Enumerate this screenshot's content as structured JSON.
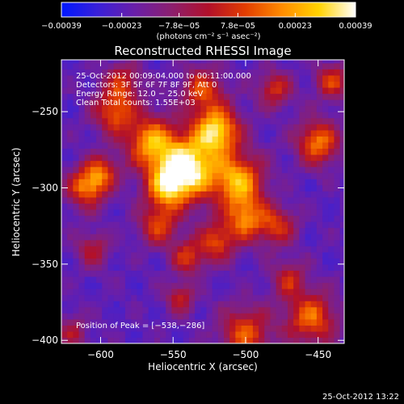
{
  "chart_data": {
    "type": "heatmap",
    "title": "Reconstructed RHESSI Image",
    "xlabel": "Heliocentric X (arcsec)",
    "ylabel": "Heliocentric Y (arcsec)",
    "xlim": [
      -627,
      -432
    ],
    "ylim": [
      -402,
      -216
    ],
    "x_ticks": [
      -600,
      -550,
      -500,
      -450
    ],
    "y_ticks": [
      -250,
      -300,
      -350,
      -400
    ],
    "x_tick_labels": [
      "−600",
      "−550",
      "−500",
      "−450"
    ],
    "y_tick_labels": [
      "−250",
      "−300",
      "−350",
      "−400"
    ],
    "colorbar": {
      "range": [
        -0.00039,
        0.00039
      ],
      "tick_values": [
        -0.00039,
        -0.00023,
        -7.8e-05,
        7.8e-05,
        0.00023,
        0.00039
      ],
      "tick_labels": [
        "−0.00039",
        "−0.00023",
        "−7.8e−05",
        "7.8e−05",
        "0.00023",
        "0.00039"
      ],
      "units_label": "(photons cm⁻² s⁻¹ asec⁻²)",
      "colormap": [
        "#0018ff",
        "#3a20d8",
        "#6a1fa8",
        "#8c1f6e",
        "#b2102a",
        "#e23d00",
        "#ff8c00",
        "#ffd200",
        "#ffffff"
      ]
    },
    "annotations": [
      "25-Oct-2012 00:09:04.000 to 00:11:00.000",
      "Detectors: 3F 5F 6F 7F 8F 9F, Att 0",
      "Energy Range: 12.0 − 25.0 keV",
      "Clean     Total counts: 1.55E+03"
    ],
    "peak_label": "Position of Peak = [−538,−286]",
    "peak": [
      -538,
      -286
    ],
    "image_sources": [
      {
        "x": -540,
        "y": -287,
        "amp": 1.0,
        "w": 14
      },
      {
        "x": -520,
        "y": -262,
        "amp": 0.85,
        "w": 11
      },
      {
        "x": -565,
        "y": -270,
        "amp": 0.7,
        "w": 12
      },
      {
        "x": -555,
        "y": -300,
        "amp": 0.6,
        "w": 10
      },
      {
        "x": -505,
        "y": -295,
        "amp": 0.75,
        "w": 12
      },
      {
        "x": -500,
        "y": -320,
        "amp": 0.6,
        "w": 10
      },
      {
        "x": -478,
        "y": -325,
        "amp": 0.45,
        "w": 9
      },
      {
        "x": -590,
        "y": -250,
        "amp": 0.55,
        "w": 10
      },
      {
        "x": -610,
        "y": -300,
        "amp": 0.6,
        "w": 9
      },
      {
        "x": -600,
        "y": -290,
        "amp": 0.5,
        "w": 8
      },
      {
        "x": -560,
        "y": -325,
        "amp": 0.5,
        "w": 9
      },
      {
        "x": -540,
        "y": -345,
        "amp": 0.45,
        "w": 8
      },
      {
        "x": -520,
        "y": -335,
        "amp": 0.5,
        "w": 9
      },
      {
        "x": -450,
        "y": -270,
        "amp": 0.65,
        "w": 10
      },
      {
        "x": -440,
        "y": -230,
        "amp": 0.5,
        "w": 8
      },
      {
        "x": -480,
        "y": -235,
        "amp": 0.45,
        "w": 8
      },
      {
        "x": -455,
        "y": -385,
        "amp": 0.6,
        "w": 12
      },
      {
        "x": -500,
        "y": -395,
        "amp": 0.55,
        "w": 12
      },
      {
        "x": -470,
        "y": -360,
        "amp": 0.4,
        "w": 8
      },
      {
        "x": -545,
        "y": -372,
        "amp": 0.4,
        "w": 7
      },
      {
        "x": -620,
        "y": -395,
        "amp": 0.3,
        "w": 8
      },
      {
        "x": -605,
        "y": -340,
        "amp": 0.35,
        "w": 8
      },
      {
        "x": -585,
        "y": -230,
        "amp": 0.4,
        "w": 9
      },
      {
        "x": -530,
        "y": -235,
        "amp": 0.5,
        "w": 10
      }
    ],
    "timestamp": "25-Oct-2012 13:22"
  }
}
